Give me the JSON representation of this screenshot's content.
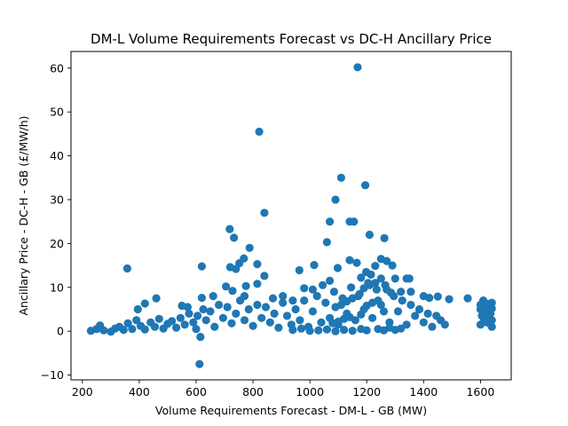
{
  "chart_data": {
    "type": "scatter",
    "title": "DM-L Volume Requirements Forecast vs DC-H Ancillary Price",
    "xlabel": "Volume Requirements Forecast - DM-L - GB (MW)",
    "ylabel": "Ancillary Price - DC-H - GB (£/MW/h)",
    "xlim": [
      160,
      1708
    ],
    "ylim": [
      -11.1,
      63.8
    ],
    "xticks": [
      200,
      400,
      600,
      800,
      1000,
      1200,
      1400,
      1600
    ],
    "yticks": [
      -10,
      0,
      10,
      20,
      30,
      40,
      50,
      60
    ],
    "grid": false,
    "marker_color": "#1f77b4",
    "points": [
      [
        1168,
        60.2
      ],
      [
        822,
        45.5
      ],
      [
        1110,
        35.0
      ],
      [
        1195,
        33.3
      ],
      [
        1090,
        30.0
      ],
      [
        840,
        27.0
      ],
      [
        1070,
        25.0
      ],
      [
        1140,
        25.0
      ],
      [
        1155,
        25.0
      ],
      [
        718,
        23.3
      ],
      [
        1210,
        22.0
      ],
      [
        733,
        21.3
      ],
      [
        1262,
        21.2
      ],
      [
        1060,
        20.3
      ],
      [
        788,
        19.0
      ],
      [
        768,
        16.6
      ],
      [
        1140,
        16.2
      ],
      [
        1250,
        16.5
      ],
      [
        1270,
        16.0
      ],
      [
        1165,
        15.6
      ],
      [
        752,
        15.5
      ],
      [
        815,
        15.3
      ],
      [
        1015,
        15.1
      ],
      [
        720,
        14.6
      ],
      [
        740,
        14.2
      ],
      [
        620,
        14.8
      ],
      [
        358,
        14.3
      ],
      [
        1098,
        14.4
      ],
      [
        1230,
        14.9
      ],
      [
        1290,
        15.0
      ],
      [
        963,
        13.9
      ],
      [
        1198,
        13.5
      ],
      [
        1215,
        12.9
      ],
      [
        1300,
        12.0
      ],
      [
        1340,
        12.0
      ],
      [
        1350,
        12.0
      ],
      [
        840,
        12.6
      ],
      [
        1070,
        11.5
      ],
      [
        1180,
        12.2
      ],
      [
        815,
        10.8
      ],
      [
        1045,
        10.5
      ],
      [
        775,
        10.3
      ],
      [
        705,
        10.2
      ],
      [
        980,
        9.8
      ],
      [
        1010,
        9.5
      ],
      [
        1320,
        9.0
      ],
      [
        1355,
        9.0
      ],
      [
        728,
        9.2
      ],
      [
        660,
        8.0
      ],
      [
        770,
        8.0
      ],
      [
        1400,
        8.0
      ],
      [
        1420,
        7.6
      ],
      [
        1450,
        7.9
      ],
      [
        1490,
        7.3
      ],
      [
        1555,
        7.5
      ],
      [
        1610,
        7.0
      ],
      [
        1640,
        6.5
      ],
      [
        460,
        7.5
      ],
      [
        420,
        6.3
      ],
      [
        620,
        7.6
      ],
      [
        905,
        8.0
      ],
      [
        870,
        7.5
      ],
      [
        940,
        7.0
      ],
      [
        395,
        5.0
      ],
      [
        570,
        5.5
      ],
      [
        550,
        5.8
      ],
      [
        1600,
        5.0
      ],
      [
        1620,
        5.5
      ],
      [
        1640,
        5.2
      ],
      [
        1605,
        3.5
      ],
      [
        1625,
        3.0
      ],
      [
        1640,
        2.5
      ],
      [
        1610,
        2.0
      ],
      [
        1630,
        1.8
      ],
      [
        1640,
        1.0
      ],
      [
        1600,
        1.5
      ],
      [
        1615,
        4.2
      ],
      [
        1635,
        4.0
      ],
      [
        1600,
        6.0
      ],
      [
        1625,
        6.2
      ],
      [
        615,
        -1.3
      ],
      [
        612,
        -7.5
      ],
      [
        230,
        0.1
      ],
      [
        250,
        0.5
      ],
      [
        262,
        1.3
      ],
      [
        275,
        0.2
      ],
      [
        300,
        -0.1
      ],
      [
        315,
        0.6
      ],
      [
        330,
        1.0
      ],
      [
        345,
        0.3
      ],
      [
        360,
        1.8
      ],
      [
        375,
        0.5
      ],
      [
        390,
        2.5
      ],
      [
        405,
        1.2
      ],
      [
        420,
        0.4
      ],
      [
        440,
        2.0
      ],
      [
        455,
        1.0
      ],
      [
        470,
        2.8
      ],
      [
        485,
        0.6
      ],
      [
        500,
        1.7
      ],
      [
        515,
        2.3
      ],
      [
        530,
        0.8
      ],
      [
        545,
        3.0
      ],
      [
        560,
        1.5
      ],
      [
        575,
        4.0
      ],
      [
        590,
        2.0
      ],
      [
        600,
        0.5
      ],
      [
        605,
        3.5
      ],
      [
        625,
        5.0
      ],
      [
        635,
        2.5
      ],
      [
        650,
        4.5
      ],
      [
        665,
        1.0
      ],
      [
        680,
        6.0
      ],
      [
        695,
        3.0
      ],
      [
        710,
        5.5
      ],
      [
        725,
        1.8
      ],
      [
        740,
        4.0
      ],
      [
        755,
        7.0
      ],
      [
        770,
        2.5
      ],
      [
        785,
        5.0
      ],
      [
        800,
        1.2
      ],
      [
        815,
        6.0
      ],
      [
        830,
        3.0
      ],
      [
        845,
        5.5
      ],
      [
        860,
        2.0
      ],
      [
        875,
        4.0
      ],
      [
        890,
        0.8
      ],
      [
        905,
        6.5
      ],
      [
        920,
        3.5
      ],
      [
        935,
        1.5
      ],
      [
        950,
        5.0
      ],
      [
        965,
        2.5
      ],
      [
        980,
        7.0
      ],
      [
        995,
        1.0
      ],
      [
        1010,
        4.5
      ],
      [
        1025,
        8.0
      ],
      [
        1040,
        2.0
      ],
      [
        1055,
        6.5
      ],
      [
        1070,
        3.0
      ],
      [
        1085,
        9.0
      ],
      [
        1100,
        1.5
      ],
      [
        1115,
        7.5
      ],
      [
        1130,
        4.0
      ],
      [
        1145,
        10.0
      ],
      [
        1160,
        2.5
      ],
      [
        1175,
        8.5
      ],
      [
        1190,
        5.0
      ],
      [
        1205,
        11.0
      ],
      [
        1220,
        3.0
      ],
      [
        1235,
        9.5
      ],
      [
        1250,
        6.0
      ],
      [
        1265,
        10.5
      ],
      [
        1280,
        2.0
      ],
      [
        1295,
        8.0
      ],
      [
        1310,
        4.5
      ],
      [
        1325,
        7.0
      ],
      [
        1340,
        1.5
      ],
      [
        1355,
        6.0
      ],
      [
        1370,
        3.5
      ],
      [
        1385,
        5.0
      ],
      [
        1400,
        2.0
      ],
      [
        1415,
        4.0
      ],
      [
        1430,
        1.0
      ],
      [
        1445,
        3.5
      ],
      [
        1460,
        2.5
      ],
      [
        1475,
        1.5
      ],
      [
        1200,
        0.2
      ],
      [
        1180,
        0.5
      ],
      [
        1150,
        0.1
      ],
      [
        1120,
        0.3
      ],
      [
        1090,
        0.0
      ],
      [
        1060,
        0.4
      ],
      [
        1030,
        0.2
      ],
      [
        1000,
        0.1
      ],
      [
        970,
        0.6
      ],
      [
        940,
        0.3
      ],
      [
        1240,
        0.5
      ],
      [
        1260,
        0.2
      ],
      [
        1280,
        0.8
      ],
      [
        1300,
        0.3
      ],
      [
        1320,
        0.6
      ],
      [
        1250,
        12.0
      ],
      [
        1230,
        11.0
      ],
      [
        1210,
        10.5
      ],
      [
        1190,
        9.8
      ],
      [
        1270,
        9.5
      ],
      [
        1285,
        8.8
      ],
      [
        1170,
        8.0
      ],
      [
        1150,
        7.5
      ],
      [
        1130,
        6.8
      ],
      [
        1110,
        6.0
      ],
      [
        1090,
        5.5
      ],
      [
        1240,
        7.0
      ],
      [
        1220,
        6.5
      ],
      [
        1200,
        5.8
      ],
      [
        1260,
        4.5
      ],
      [
        1180,
        3.8
      ],
      [
        1140,
        3.2
      ],
      [
        1120,
        2.8
      ],
      [
        1100,
        2.2
      ],
      [
        1080,
        1.8
      ]
    ]
  }
}
